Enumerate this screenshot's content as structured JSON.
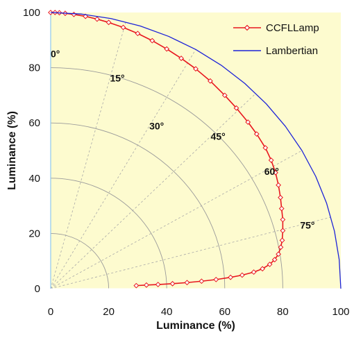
{
  "chart_data": {
    "type": "line",
    "title": "",
    "xlabel": "Luminance (%)",
    "ylabel": "Luminance (%)",
    "xlim": [
      0,
      100
    ],
    "ylim": [
      0,
      100
    ],
    "x_ticks": [
      "0",
      "20",
      "40",
      "60",
      "80",
      "100"
    ],
    "y_ticks": [
      "0",
      "20",
      "40",
      "60",
      "80",
      "100"
    ],
    "grid": "polar",
    "background_color": "#fdfbcf",
    "radial_circles": [
      20,
      40,
      60,
      80
    ],
    "angle_lines_deg": [
      15,
      30,
      45,
      60,
      75
    ],
    "angle_labels": [
      {
        "text": "0°",
        "angle": 0,
        "r": 85
      },
      {
        "text": "15°",
        "angle": 15,
        "r": 79
      },
      {
        "text": "30°",
        "angle": 30,
        "r": 68
      },
      {
        "text": "45°",
        "angle": 45,
        "r": 78
      },
      {
        "text": "60°",
        "angle": 60,
        "r": 85
      },
      {
        "text": "75°",
        "angle": 75,
        "r": 89
      }
    ],
    "legend_position": "top-right",
    "series": [
      {
        "name": "CCFLLamp",
        "color": "#e8161e",
        "marker": "diamond",
        "x": [
          0,
          1.5,
          3,
          5,
          8,
          12,
          16,
          20,
          25,
          30,
          35,
          40,
          45,
          50,
          55,
          60,
          64,
          68,
          71,
          74,
          76,
          77.5,
          78.5,
          79.2,
          79.6,
          80,
          80,
          79.8,
          79.3,
          78.5,
          77.2,
          75.5,
          73,
          70,
          66,
          62,
          57,
          52,
          47,
          42,
          37,
          33,
          29.5
        ],
        "y": [
          100,
          100,
          99.9,
          99.7,
          99.3,
          98.6,
          97.6,
          96.4,
          94.6,
          92.4,
          89.8,
          86.8,
          83.4,
          79.6,
          75.2,
          70,
          65.4,
          60.3,
          56,
          51,
          46.5,
          42,
          37.5,
          33,
          29,
          25,
          21,
          17.5,
          15,
          12.5,
          10.5,
          8.8,
          7.2,
          6,
          4.9,
          4.1,
          3.3,
          2.7,
          2.2,
          1.8,
          1.5,
          1.3,
          1.1
        ]
      },
      {
        "name": "Lambertian",
        "color": "#1c22d8",
        "marker": "none",
        "x": [
          0,
          10.45,
          20.79,
          30.9,
          40.67,
          50,
          58.78,
          66.91,
          74.31,
          80.9,
          86.6,
          91.35,
          95.11,
          97.81,
          99.45,
          100
        ],
        "y": [
          100,
          99.45,
          97.81,
          95.11,
          91.35,
          86.6,
          80.9,
          74.31,
          66.91,
          58.78,
          50,
          40.67,
          30.9,
          20.79,
          10.45,
          0
        ]
      }
    ]
  }
}
